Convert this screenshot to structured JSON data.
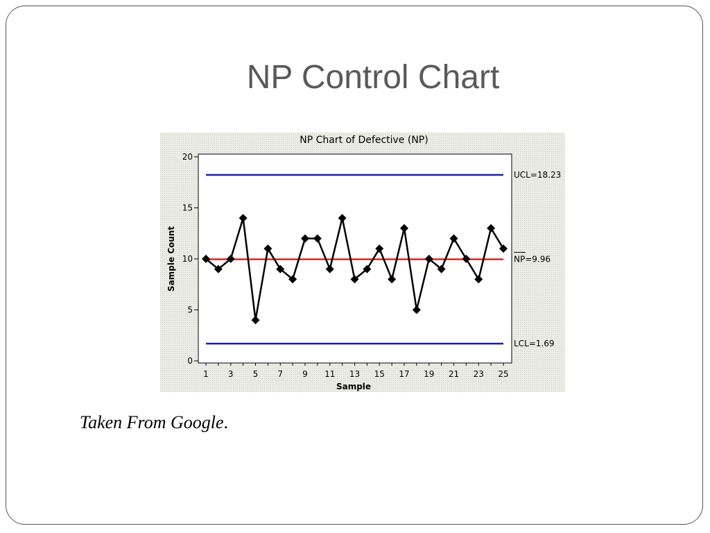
{
  "slide": {
    "title": "NP Control Chart",
    "caption": "Taken From Google",
    "caption_suffix": "."
  },
  "chart_data": {
    "type": "line",
    "title": "NP Chart of Defective (NP)",
    "xlabel": "Sample",
    "ylabel": "Sample Count",
    "xlim": [
      1,
      25
    ],
    "ylim": [
      0,
      20
    ],
    "x_ticks": [
      1,
      3,
      5,
      7,
      9,
      11,
      13,
      15,
      17,
      19,
      21,
      23,
      25
    ],
    "y_ticks": [
      0,
      5,
      10,
      15,
      20
    ],
    "x": [
      1,
      2,
      3,
      4,
      5,
      6,
      7,
      8,
      9,
      10,
      11,
      12,
      13,
      14,
      15,
      16,
      17,
      18,
      19,
      20,
      21,
      22,
      23,
      24,
      25
    ],
    "series": [
      {
        "values": [
          10,
          9,
          10,
          14,
          4,
          11,
          9,
          8,
          12,
          12,
          9,
          14,
          8,
          9,
          11,
          8,
          13,
          5,
          10,
          9,
          12,
          10,
          8,
          13,
          11
        ],
        "color": "#000000",
        "marker": "diamond"
      }
    ],
    "control_lines": [
      {
        "label": "UCL=18.23",
        "value": 18.23,
        "color": "#1f1fa8"
      },
      {
        "label_overline": "NP",
        "label": "=9.96",
        "value": 9.96,
        "color": "#d42a20"
      },
      {
        "label": "LCL=1.69",
        "value": 1.69,
        "color": "#1f1fa8"
      }
    ],
    "grid": false
  }
}
